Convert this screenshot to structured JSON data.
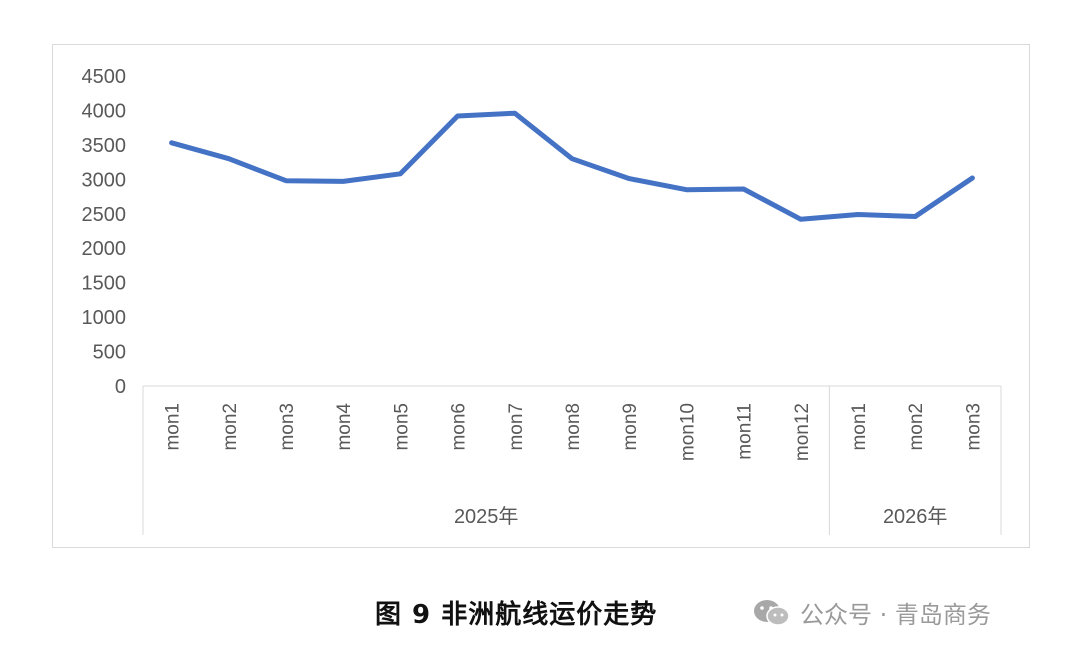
{
  "chart_data": {
    "type": "line",
    "categories": [
      "mon1",
      "mon2",
      "mon3",
      "mon4",
      "mon5",
      "mon6",
      "mon7",
      "mon8",
      "mon9",
      "mon10",
      "mon11",
      "mon12",
      "mon1",
      "mon2",
      "mon3"
    ],
    "groups": [
      {
        "label": "2025年",
        "count": 12
      },
      {
        "label": "2026年",
        "count": 3
      }
    ],
    "series": [
      {
        "values": [
          3530,
          3300,
          2980,
          2970,
          3080,
          3920,
          3960,
          3300,
          3010,
          2850,
          2860,
          2420,
          2490,
          2460,
          3020
        ],
        "color": "#4472c4"
      }
    ],
    "yticks": [
      0,
      500,
      1000,
      1500,
      2000,
      2500,
      3000,
      3500,
      4000,
      4500
    ],
    "ylim": [
      0,
      4500
    ],
    "grid": false,
    "legend": "none"
  },
  "caption": "图 9 非洲航线运价走势",
  "watermark": {
    "icon": "wechat-icon",
    "text": "公众号 · 青岛商务"
  }
}
